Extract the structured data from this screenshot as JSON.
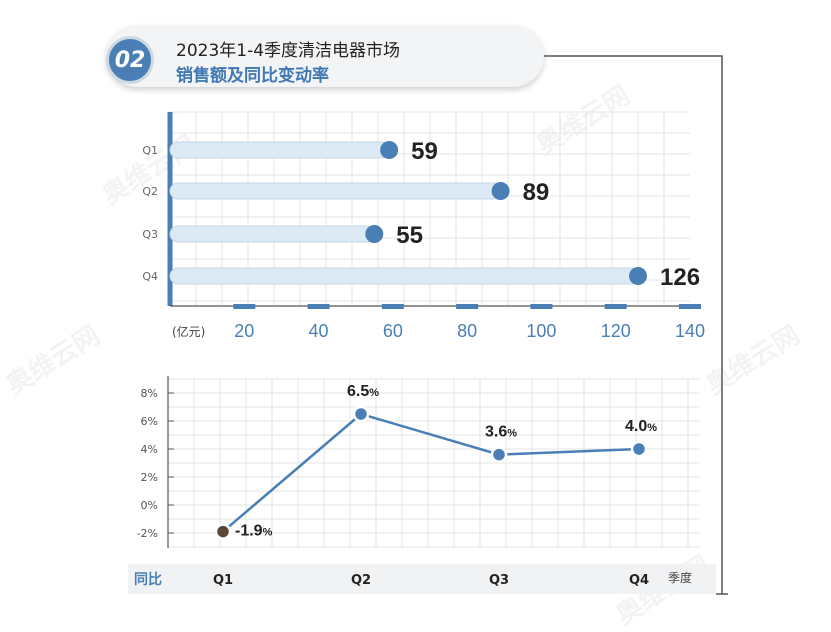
{
  "header": {
    "badge": "02",
    "title": "2023年1-4季度清洁电器市场",
    "subtitle": "销售额及同比变动率"
  },
  "watermark": "奥维云网",
  "colors": {
    "accent": "#4a7fb6",
    "bar_fill": "#dbeaf5",
    "negative_marker": "#5a4636"
  },
  "chart_data": [
    {
      "type": "bar",
      "orientation": "horizontal",
      "categories": [
        "Q1",
        "Q2",
        "Q3",
        "Q4"
      ],
      "values": [
        59,
        89,
        55,
        126
      ],
      "value_labels": [
        "59",
        "89",
        "55",
        "126"
      ],
      "xlabel": "(亿元)",
      "x_ticks": [
        "20",
        "40",
        "60",
        "80",
        "100",
        "120",
        "140"
      ],
      "xlim": [
        0,
        140
      ],
      "grid": true
    },
    {
      "type": "line",
      "categories": [
        "Q1",
        "Q2",
        "Q3",
        "Q4"
      ],
      "values": [
        -1.9,
        6.5,
        3.6,
        4.0
      ],
      "value_labels": [
        "-1.9",
        "6.5",
        "3.6",
        "4.0"
      ],
      "value_unit": "%",
      "xlabel": "季度",
      "series_label": "同比",
      "y_ticks": [
        "8%",
        "6%",
        "4%",
        "2%",
        "0%",
        "-2%"
      ],
      "ylim": [
        -2,
        8
      ],
      "grid": true
    }
  ]
}
